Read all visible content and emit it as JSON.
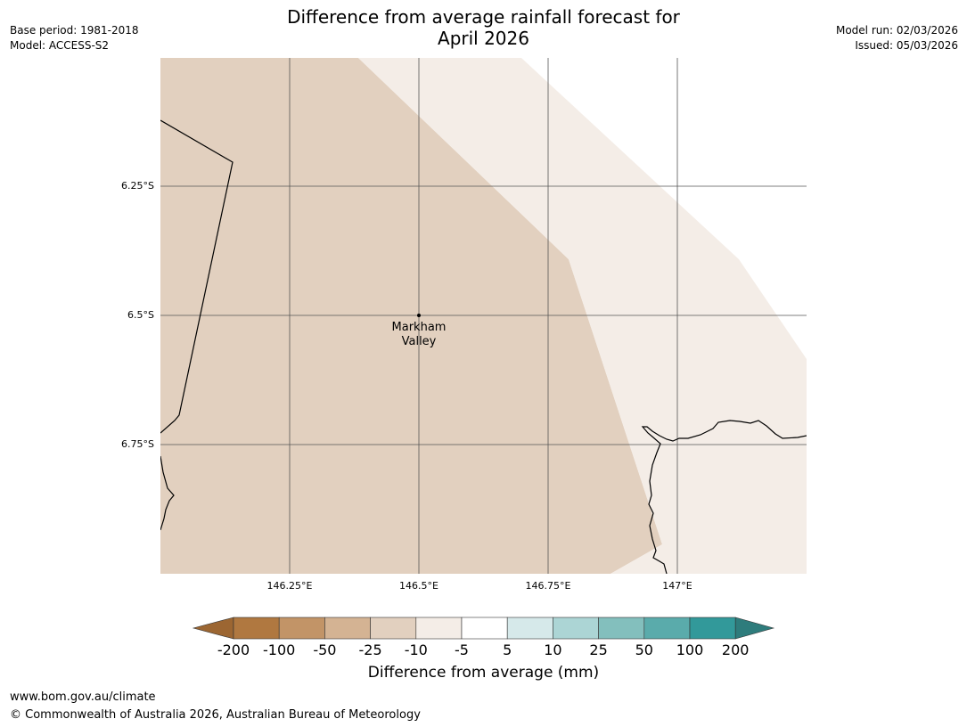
{
  "header": {
    "title_line1": "Difference from average rainfall forecast for",
    "title_line2": "April 2026",
    "base_period": "Base period: 1981-2018",
    "model": "Model: ACCESS-S2",
    "model_run": "Model run: 02/03/2026",
    "issued": "Issued: 05/03/2026"
  },
  "map": {
    "place_label_line1": "Markham",
    "place_label_line2": "Valley",
    "lat_ticks": [
      "6.25°S",
      "6.5°S",
      "6.75°S"
    ],
    "lon_ticks": [
      "146.25°E",
      "146.5°E",
      "146.75°E",
      "147°E"
    ],
    "colors": {
      "dry_neg25_neg10": "#e2d0bf",
      "dry_neg10_neg5": "#f4ede7",
      "border": "#000000",
      "grid": "#555555"
    }
  },
  "colorbar": {
    "title": "Difference from average (mm)",
    "labels": [
      "-200",
      "-100",
      "-50",
      "-25",
      "-10",
      "-5",
      "5",
      "10",
      "25",
      "50",
      "100",
      "200"
    ],
    "colors": [
      "#9c6632",
      "#b07840",
      "#c29467",
      "#d4b393",
      "#e2d0bf",
      "#f4ede7",
      "#ffffff",
      "#d6e9ea",
      "#acd5d5",
      "#83bfbd",
      "#5aabab",
      "#32999a",
      "#2e7c7c"
    ]
  },
  "footer": {
    "url": "www.bom.gov.au/climate",
    "copyright": "© Commonwealth of Australia 2026, Australian Bureau of Meteorology"
  }
}
